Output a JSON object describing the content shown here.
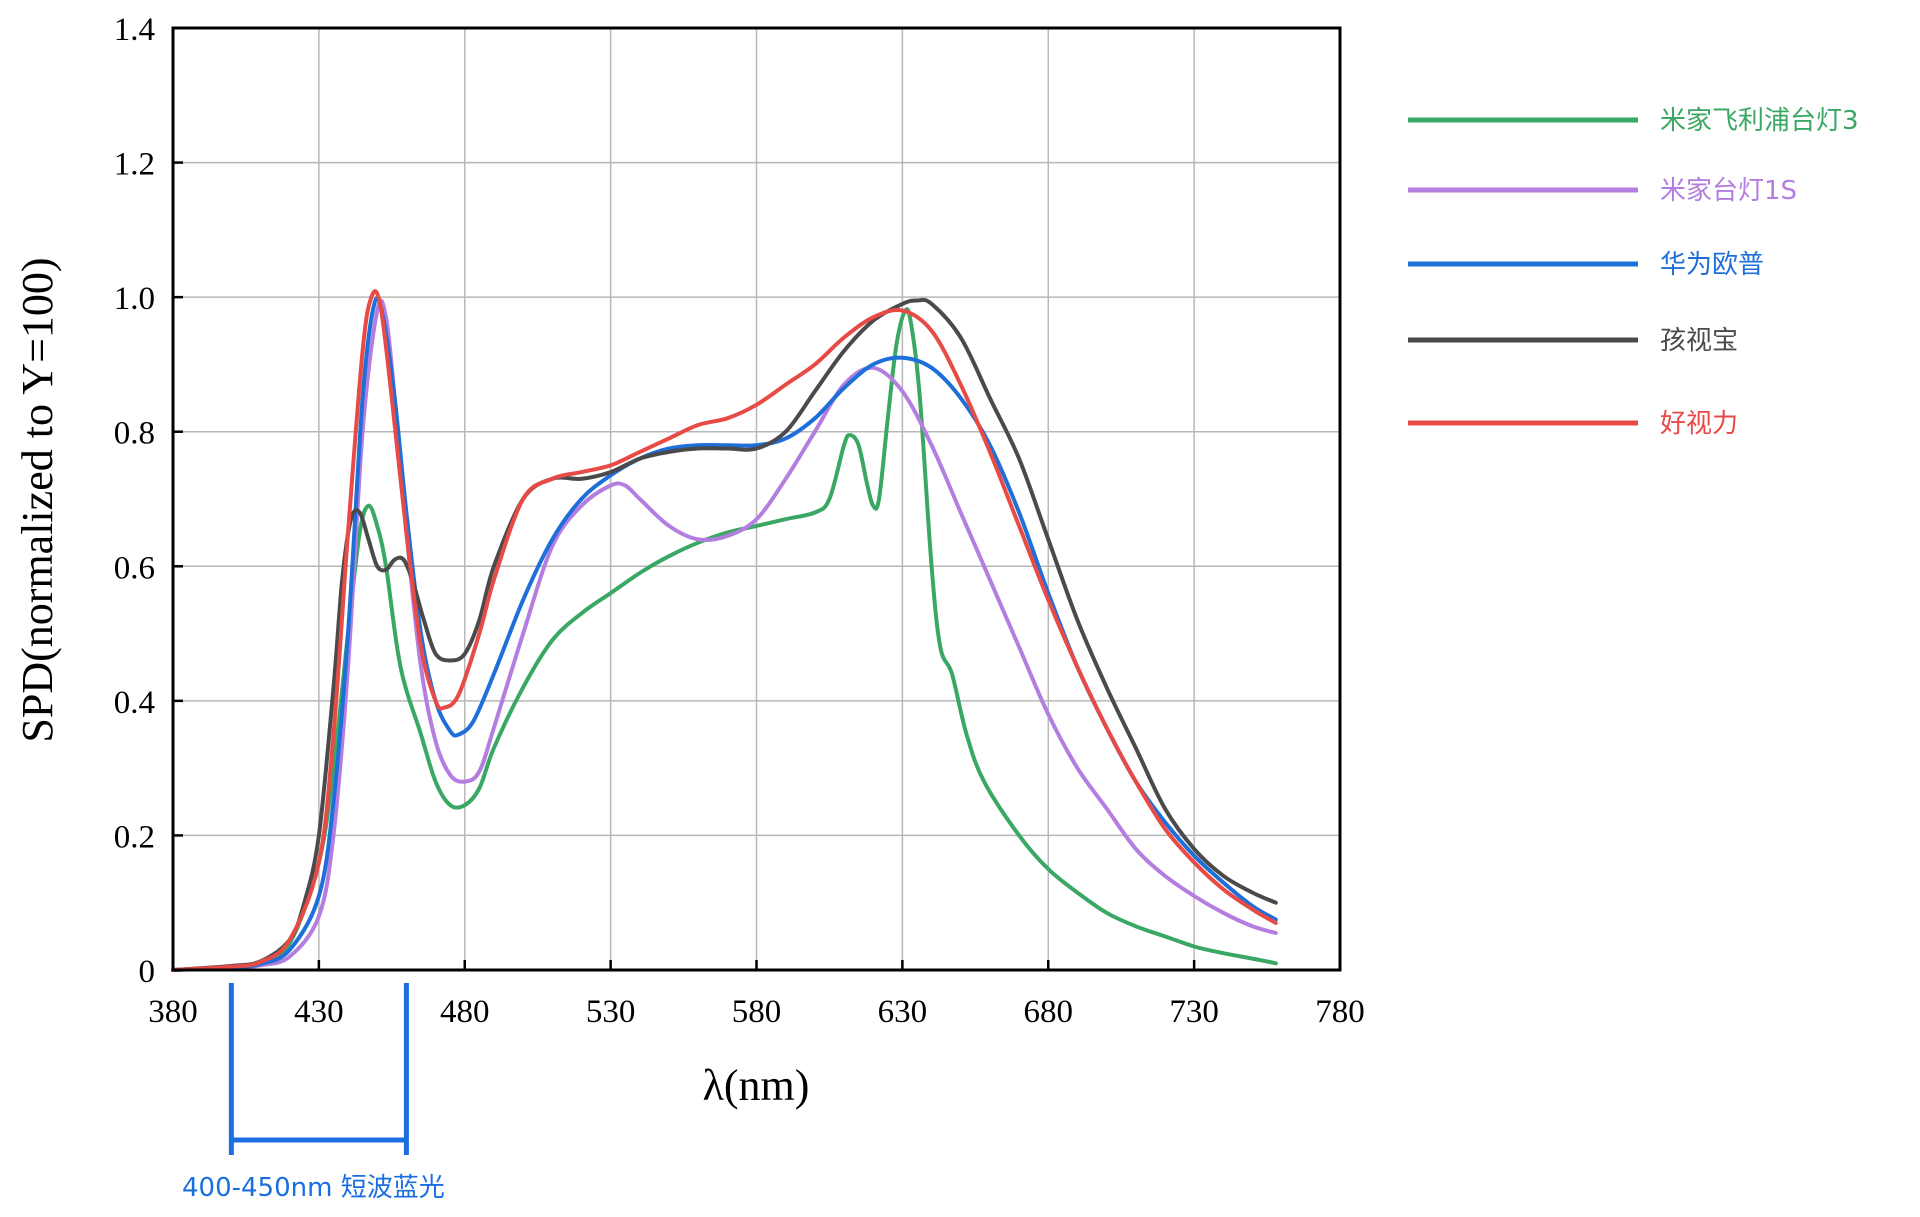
{
  "chart_data": {
    "type": "line",
    "xlabel": "λ(nm)",
    "ylabel": "SPD(normalized to Y=100)",
    "xlim": [
      380,
      780
    ],
    "ylim": [
      0,
      1.4
    ],
    "x_ticks": [
      "380",
      "430",
      "480",
      "530",
      "580",
      "630",
      "680",
      "730",
      "780"
    ],
    "y_ticks": [
      "0",
      "0.2",
      "0.4",
      "0.6",
      "0.8",
      "1.0",
      "1.2",
      "1.4"
    ],
    "grid": true,
    "legend_position": "right",
    "annotation": {
      "text": "400-450nm 短波蓝光",
      "range": [
        400,
        460
      ],
      "color": "#1a6fe0"
    },
    "series": [
      {
        "name": "米家飞利浦台灯3",
        "color": "#3aa864",
        "points": [
          [
            380,
            0
          ],
          [
            400,
            0.005
          ],
          [
            410,
            0.01
          ],
          [
            420,
            0.04
          ],
          [
            430,
            0.16
          ],
          [
            435,
            0.3
          ],
          [
            440,
            0.5
          ],
          [
            444,
            0.65
          ],
          [
            447,
            0.69
          ],
          [
            450,
            0.66
          ],
          [
            453,
            0.6
          ],
          [
            458,
            0.45
          ],
          [
            465,
            0.35
          ],
          [
            470,
            0.28
          ],
          [
            475,
            0.245
          ],
          [
            480,
            0.245
          ],
          [
            485,
            0.27
          ],
          [
            490,
            0.33
          ],
          [
            500,
            0.42
          ],
          [
            510,
            0.49
          ],
          [
            520,
            0.53
          ],
          [
            530,
            0.56
          ],
          [
            540,
            0.59
          ],
          [
            550,
            0.615
          ],
          [
            560,
            0.635
          ],
          [
            570,
            0.65
          ],
          [
            580,
            0.66
          ],
          [
            590,
            0.67
          ],
          [
            600,
            0.68
          ],
          [
            605,
            0.7
          ],
          [
            610,
            0.78
          ],
          [
            612,
            0.795
          ],
          [
            615,
            0.78
          ],
          [
            618,
            0.72
          ],
          [
            620,
            0.69
          ],
          [
            622,
            0.7
          ],
          [
            625,
            0.82
          ],
          [
            628,
            0.93
          ],
          [
            631,
            0.98
          ],
          [
            633,
            0.96
          ],
          [
            636,
            0.85
          ],
          [
            640,
            0.6
          ],
          [
            643,
            0.48
          ],
          [
            647,
            0.44
          ],
          [
            652,
            0.35
          ],
          [
            658,
            0.28
          ],
          [
            670,
            0.2
          ],
          [
            680,
            0.15
          ],
          [
            690,
            0.115
          ],
          [
            700,
            0.085
          ],
          [
            710,
            0.065
          ],
          [
            720,
            0.05
          ],
          [
            730,
            0.035
          ],
          [
            740,
            0.025
          ],
          [
            750,
            0.017
          ],
          [
            758,
            0.01
          ]
        ]
      },
      {
        "name": "米家台灯1S",
        "color": "#b47ee0",
        "points": [
          [
            380,
            0
          ],
          [
            400,
            0.003
          ],
          [
            410,
            0.007
          ],
          [
            420,
            0.02
          ],
          [
            430,
            0.08
          ],
          [
            435,
            0.2
          ],
          [
            440,
            0.45
          ],
          [
            445,
            0.8
          ],
          [
            450,
            0.98
          ],
          [
            453,
            0.97
          ],
          [
            456,
            0.85
          ],
          [
            460,
            0.65
          ],
          [
            465,
            0.45
          ],
          [
            470,
            0.34
          ],
          [
            475,
            0.29
          ],
          [
            480,
            0.28
          ],
          [
            485,
            0.295
          ],
          [
            490,
            0.36
          ],
          [
            500,
            0.5
          ],
          [
            510,
            0.63
          ],
          [
            520,
            0.69
          ],
          [
            530,
            0.72
          ],
          [
            535,
            0.72
          ],
          [
            540,
            0.7
          ],
          [
            550,
            0.66
          ],
          [
            560,
            0.64
          ],
          [
            570,
            0.645
          ],
          [
            580,
            0.67
          ],
          [
            590,
            0.73
          ],
          [
            600,
            0.8
          ],
          [
            610,
            0.87
          ],
          [
            620,
            0.895
          ],
          [
            630,
            0.86
          ],
          [
            640,
            0.78
          ],
          [
            650,
            0.68
          ],
          [
            660,
            0.58
          ],
          [
            670,
            0.48
          ],
          [
            680,
            0.38
          ],
          [
            690,
            0.3
          ],
          [
            700,
            0.24
          ],
          [
            710,
            0.18
          ],
          [
            720,
            0.14
          ],
          [
            730,
            0.11
          ],
          [
            740,
            0.085
          ],
          [
            750,
            0.065
          ],
          [
            758,
            0.055
          ]
        ]
      },
      {
        "name": "华为欧普",
        "color": "#1e6fd9",
        "points": [
          [
            380,
            0
          ],
          [
            400,
            0.004
          ],
          [
            410,
            0.009
          ],
          [
            420,
            0.03
          ],
          [
            430,
            0.11
          ],
          [
            435,
            0.25
          ],
          [
            440,
            0.5
          ],
          [
            445,
            0.85
          ],
          [
            449,
            0.99
          ],
          [
            452,
            0.97
          ],
          [
            456,
            0.85
          ],
          [
            460,
            0.68
          ],
          [
            465,
            0.5
          ],
          [
            470,
            0.4
          ],
          [
            475,
            0.355
          ],
          [
            478,
            0.35
          ],
          [
            483,
            0.37
          ],
          [
            490,
            0.44
          ],
          [
            500,
            0.55
          ],
          [
            510,
            0.64
          ],
          [
            520,
            0.7
          ],
          [
            530,
            0.735
          ],
          [
            540,
            0.76
          ],
          [
            550,
            0.775
          ],
          [
            560,
            0.78
          ],
          [
            570,
            0.78
          ],
          [
            580,
            0.78
          ],
          [
            590,
            0.79
          ],
          [
            600,
            0.82
          ],
          [
            610,
            0.865
          ],
          [
            620,
            0.9
          ],
          [
            630,
            0.91
          ],
          [
            640,
            0.895
          ],
          [
            650,
            0.85
          ],
          [
            660,
            0.78
          ],
          [
            670,
            0.68
          ],
          [
            680,
            0.56
          ],
          [
            690,
            0.45
          ],
          [
            700,
            0.36
          ],
          [
            710,
            0.28
          ],
          [
            720,
            0.22
          ],
          [
            730,
            0.17
          ],
          [
            740,
            0.13
          ],
          [
            750,
            0.095
          ],
          [
            758,
            0.075
          ]
        ]
      },
      {
        "name": "孩视宝",
        "color": "#4a4a4a",
        "points": [
          [
            380,
            0
          ],
          [
            400,
            0.006
          ],
          [
            410,
            0.013
          ],
          [
            420,
            0.045
          ],
          [
            425,
            0.1
          ],
          [
            430,
            0.2
          ],
          [
            435,
            0.42
          ],
          [
            438,
            0.58
          ],
          [
            441,
            0.67
          ],
          [
            444,
            0.68
          ],
          [
            447,
            0.64
          ],
          [
            450,
            0.6
          ],
          [
            453,
            0.595
          ],
          [
            456,
            0.61
          ],
          [
            459,
            0.61
          ],
          [
            462,
            0.58
          ],
          [
            466,
            0.52
          ],
          [
            470,
            0.47
          ],
          [
            475,
            0.46
          ],
          [
            480,
            0.47
          ],
          [
            485,
            0.52
          ],
          [
            490,
            0.6
          ],
          [
            500,
            0.7
          ],
          [
            510,
            0.73
          ],
          [
            520,
            0.73
          ],
          [
            530,
            0.74
          ],
          [
            540,
            0.76
          ],
          [
            550,
            0.77
          ],
          [
            560,
            0.775
          ],
          [
            570,
            0.775
          ],
          [
            580,
            0.775
          ],
          [
            590,
            0.8
          ],
          [
            600,
            0.86
          ],
          [
            610,
            0.92
          ],
          [
            620,
            0.965
          ],
          [
            630,
            0.99
          ],
          [
            635,
            0.995
          ],
          [
            640,
            0.99
          ],
          [
            650,
            0.94
          ],
          [
            660,
            0.85
          ],
          [
            670,
            0.76
          ],
          [
            680,
            0.64
          ],
          [
            690,
            0.52
          ],
          [
            700,
            0.42
          ],
          [
            710,
            0.33
          ],
          [
            720,
            0.24
          ],
          [
            730,
            0.18
          ],
          [
            740,
            0.14
          ],
          [
            750,
            0.115
          ],
          [
            758,
            0.1
          ]
        ]
      },
      {
        "name": "好视力",
        "color": "#e84a46",
        "points": [
          [
            380,
            0
          ],
          [
            400,
            0.005
          ],
          [
            410,
            0.012
          ],
          [
            420,
            0.045
          ],
          [
            430,
            0.16
          ],
          [
            435,
            0.35
          ],
          [
            440,
            0.65
          ],
          [
            445,
            0.92
          ],
          [
            448,
            1.0
          ],
          [
            451,
            0.99
          ],
          [
            455,
            0.85
          ],
          [
            460,
            0.65
          ],
          [
            465,
            0.48
          ],
          [
            470,
            0.4
          ],
          [
            473,
            0.39
          ],
          [
            478,
            0.41
          ],
          [
            485,
            0.5
          ],
          [
            490,
            0.58
          ],
          [
            500,
            0.7
          ],
          [
            510,
            0.73
          ],
          [
            520,
            0.74
          ],
          [
            530,
            0.75
          ],
          [
            540,
            0.77
          ],
          [
            550,
            0.79
          ],
          [
            560,
            0.81
          ],
          [
            570,
            0.82
          ],
          [
            580,
            0.84
          ],
          [
            590,
            0.87
          ],
          [
            600,
            0.9
          ],
          [
            610,
            0.94
          ],
          [
            620,
            0.97
          ],
          [
            630,
            0.98
          ],
          [
            640,
            0.95
          ],
          [
            650,
            0.87
          ],
          [
            660,
            0.77
          ],
          [
            670,
            0.66
          ],
          [
            680,
            0.55
          ],
          [
            690,
            0.45
          ],
          [
            700,
            0.36
          ],
          [
            710,
            0.28
          ],
          [
            720,
            0.21
          ],
          [
            730,
            0.16
          ],
          [
            740,
            0.12
          ],
          [
            750,
            0.09
          ],
          [
            758,
            0.07
          ]
        ]
      }
    ]
  }
}
